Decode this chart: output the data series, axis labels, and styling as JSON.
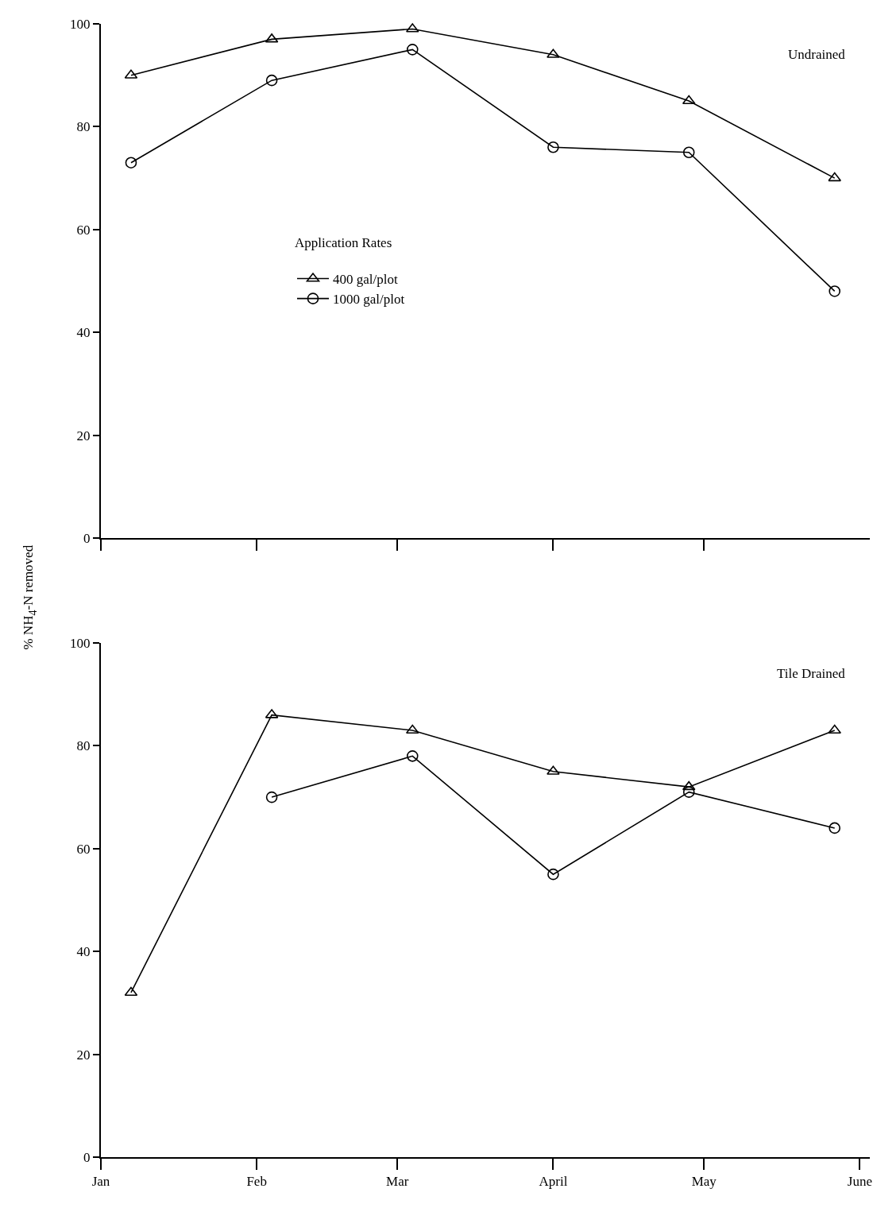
{
  "chart_data": [
    {
      "type": "line",
      "ylabel": "% NH$_{4}$-N removed",
      "legend_title": "Application Rates",
      "legend": "left",
      "grid": false,
      "tick_labels": "y",
      "annotations": [
        "Undrained"
      ],
      "x": [
        "--01-07",
        "--02-04",
        "--03-04",
        "--04-01",
        "--04-28",
        "--05-27"
      ],
      "xlim": [
        "--01-01",
        "--06-03"
      ],
      "xticks": [
        {
          "value": "--01-01",
          "label": null
        },
        {
          "value": "--02-01",
          "label": null
        },
        {
          "value": "--03-01",
          "label": null
        },
        {
          "value": "--04-01",
          "label": null
        },
        {
          "value": "--05-01",
          "label": null
        }
      ],
      "ylim": [
        0,
        100
      ],
      "yticks": [
        0,
        20,
        40,
        60,
        80,
        100
      ],
      "series": [
        {
          "name": "400 gal/plot",
          "color": "#000000",
          "marker": "triangle",
          "values": [
            90,
            97,
            99,
            94,
            85,
            70
          ]
        },
        {
          "name": "1000 gal/plot",
          "color": "#000000",
          "marker": "circle",
          "values": [
            73,
            89,
            95,
            76,
            75,
            48
          ]
        }
      ]
    },
    {
      "type": "line",
      "legend": false,
      "grid": false,
      "annotations": [
        "Tile Drained"
      ],
      "x": [
        "--01-07",
        "--02-04",
        "--03-04",
        "--04-01",
        "--04-28",
        "--05-27"
      ],
      "xlim": [
        "--01-01",
        "--06-03"
      ],
      "xticks": [
        {
          "value": "--01-01",
          "label": "Jan"
        },
        {
          "value": "--02-01",
          "label": "Feb"
        },
        {
          "value": "--03-01",
          "label": "Mar"
        },
        {
          "value": "--04-01",
          "label": "April"
        },
        {
          "value": "--05-01",
          "label": "May"
        },
        {
          "value": "--06-01",
          "label": "June"
        }
      ],
      "ylim": [
        0,
        100
      ],
      "yticks": [
        0,
        20,
        40,
        60,
        80,
        100
      ],
      "series": [
        {
          "color": "#000000",
          "marker": "triangle",
          "values": [
            32,
            86,
            83,
            75,
            72,
            83
          ]
        },
        {
          "color": "#000000",
          "marker": "circle",
          "values": [
            null,
            70,
            78,
            55,
            71,
            64
          ]
        }
      ]
    }
  ]
}
